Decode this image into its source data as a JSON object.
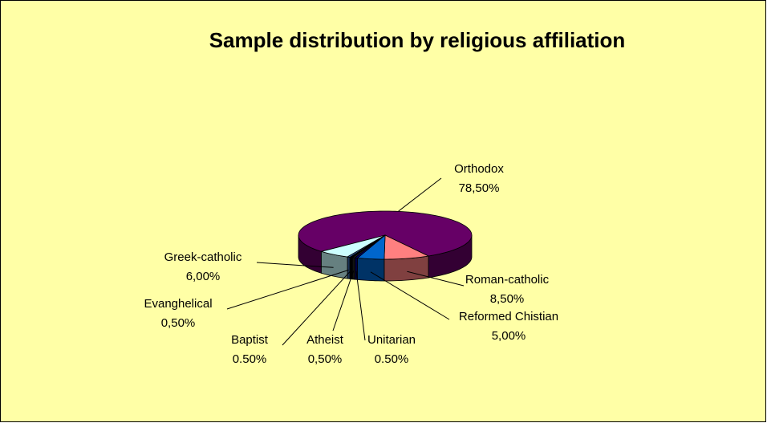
{
  "chart_data": {
    "type": "pie",
    "title": "Sample distribution by religious affiliation",
    "categories": [
      "Orthodox",
      "Roman-catholic",
      "Reformed Chistian",
      "Unitarian",
      "Atheist",
      "Baptist",
      "Evanghelical",
      "Greek-catholic"
    ],
    "values": [
      78.5,
      8.5,
      5,
      0.5,
      0.5,
      0.5,
      0.5,
      6
    ],
    "value_labels": [
      "78,50%",
      "8,50%",
      "5,00%",
      "0.50%",
      "0,50%",
      "0.50%",
      "0,50%",
      "6,00%"
    ],
    "colors": [
      "#660066",
      "#ff8080",
      "#0066cc",
      "#000080",
      "#222222",
      "#000000",
      "#3366aa",
      "#ccffff"
    ]
  }
}
